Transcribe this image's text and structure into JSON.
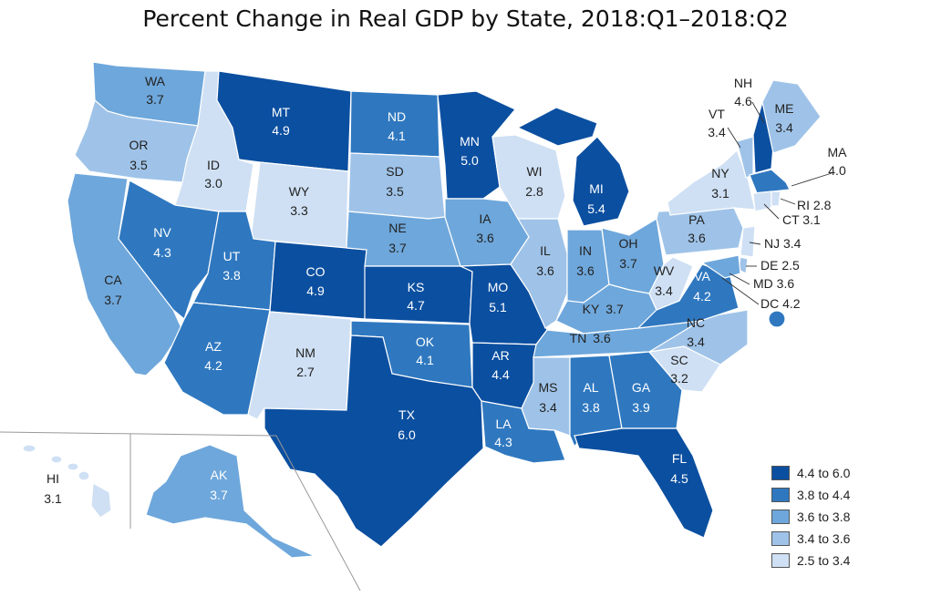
{
  "title": "Percent Change in Real GDP by State, 2018:Q1–2018:Q2",
  "colors": {
    "c1": "#0b4fa0",
    "c2": "#2f78c0",
    "c3": "#6ea7db",
    "c4": "#9fc3e8",
    "c5": "#cfe0f4",
    "border": "#ffffff"
  },
  "legend": [
    {
      "range": "4.4 to 6.0",
      "color": "#0b4fa0"
    },
    {
      "range": "3.8 to 4.4",
      "color": "#2f78c0"
    },
    {
      "range": "3.6 to 3.8",
      "color": "#6ea7db"
    },
    {
      "range": "3.4 to 3.6",
      "color": "#9fc3e8"
    },
    {
      "range": "2.5 to 3.4",
      "color": "#cfe0f4"
    }
  ],
  "states": {
    "WA": {
      "abbr": "WA",
      "value": "3.7"
    },
    "OR": {
      "abbr": "OR",
      "value": "3.5"
    },
    "CA": {
      "abbr": "CA",
      "value": "3.7"
    },
    "ID": {
      "abbr": "ID",
      "value": "3.0"
    },
    "NV": {
      "abbr": "NV",
      "value": "4.3"
    },
    "MT": {
      "abbr": "MT",
      "value": "4.9"
    },
    "WY": {
      "abbr": "WY",
      "value": "3.3"
    },
    "UT": {
      "abbr": "UT",
      "value": "3.8"
    },
    "AZ": {
      "abbr": "AZ",
      "value": "4.2"
    },
    "CO": {
      "abbr": "CO",
      "value": "4.9"
    },
    "NM": {
      "abbr": "NM",
      "value": "2.7"
    },
    "ND": {
      "abbr": "ND",
      "value": "4.1"
    },
    "SD": {
      "abbr": "SD",
      "value": "3.5"
    },
    "NE": {
      "abbr": "NE",
      "value": "3.7"
    },
    "KS": {
      "abbr": "KS",
      "value": "4.7"
    },
    "OK": {
      "abbr": "OK",
      "value": "4.1"
    },
    "TX": {
      "abbr": "TX",
      "value": "6.0"
    },
    "MN": {
      "abbr": "MN",
      "value": "5.0"
    },
    "IA": {
      "abbr": "IA",
      "value": "3.6"
    },
    "MO": {
      "abbr": "MO",
      "value": "5.1"
    },
    "AR": {
      "abbr": "AR",
      "value": "4.4"
    },
    "LA": {
      "abbr": "LA",
      "value": "4.3"
    },
    "WI": {
      "abbr": "WI",
      "value": "2.8"
    },
    "MI": {
      "abbr": "MI",
      "value": "5.4"
    },
    "IL": {
      "abbr": "IL",
      "value": "3.6"
    },
    "IN": {
      "abbr": "IN",
      "value": "3.6"
    },
    "OH": {
      "abbr": "OH",
      "value": "3.7"
    },
    "KY": {
      "abbr": "KY",
      "value": "3.7"
    },
    "TN": {
      "abbr": "TN",
      "value": "3.6"
    },
    "MS": {
      "abbr": "MS",
      "value": "3.4"
    },
    "AL": {
      "abbr": "AL",
      "value": "3.8"
    },
    "GA": {
      "abbr": "GA",
      "value": "3.9"
    },
    "FL": {
      "abbr": "FL",
      "value": "4.5"
    },
    "SC": {
      "abbr": "SC",
      "value": "3.2"
    },
    "NC": {
      "abbr": "NC",
      "value": "3.4"
    },
    "VA": {
      "abbr": "VA",
      "value": "4.2"
    },
    "WV": {
      "abbr": "WV",
      "value": "3.4"
    },
    "PA": {
      "abbr": "PA",
      "value": "3.6"
    },
    "NY": {
      "abbr": "NY",
      "value": "3.1"
    },
    "VT": {
      "abbr": "VT",
      "value": "3.4"
    },
    "NH": {
      "abbr": "NH",
      "value": "4.6"
    },
    "ME": {
      "abbr": "ME",
      "value": "3.4"
    },
    "MA": {
      "abbr": "MA",
      "value": "4.0"
    },
    "AK": {
      "abbr": "AK",
      "value": "3.7"
    },
    "HI": {
      "abbr": "HI",
      "value": "3.1"
    }
  },
  "small_labels": {
    "RI": "RI 2.8",
    "CT": "CT 3.1",
    "NJ": "NJ 3.4",
    "DE": "DE 2.5",
    "MD": "MD 3.6",
    "DC": "DC 4.2"
  }
}
